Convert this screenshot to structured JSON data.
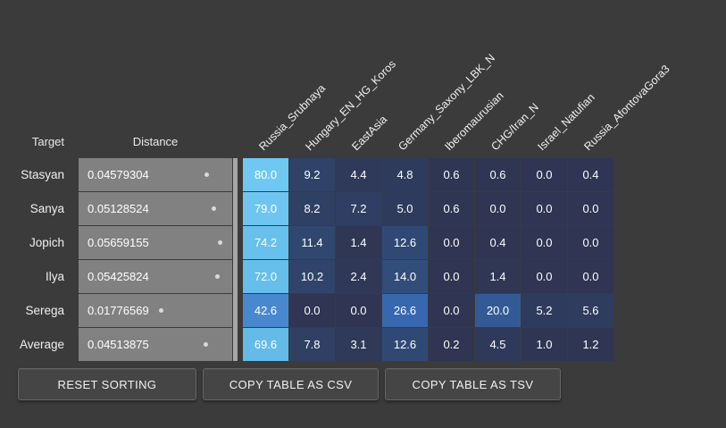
{
  "table": {
    "target_header": "Target",
    "distance_header": "Distance",
    "columns": [
      "Russia_Srubnaya",
      "Hungary_EN_HG_Koros",
      "EastAsia",
      "Germany_Saxony_LBK_N",
      "Iberomaurusian",
      "CHG/Iran_N",
      "Israel_Natufian",
      "Russia_AfontovaGora3"
    ],
    "rows": [
      {
        "target": "Stasyan",
        "distance": "0.04579304",
        "values": [
          80.0,
          9.2,
          4.4,
          4.8,
          0.6,
          0.6,
          0.0,
          0.4
        ]
      },
      {
        "target": "Sanya",
        "distance": "0.05128524",
        "values": [
          79.0,
          8.2,
          7.2,
          5.0,
          0.6,
          0.0,
          0.0,
          0.0
        ]
      },
      {
        "target": "Jopich",
        "distance": "0.05659155",
        "values": [
          74.2,
          11.4,
          1.4,
          12.6,
          0.0,
          0.4,
          0.0,
          0.0
        ]
      },
      {
        "target": "Ilya",
        "distance": "0.05425824",
        "values": [
          72.0,
          10.2,
          2.4,
          14.0,
          0.0,
          1.4,
          0.0,
          0.0
        ]
      },
      {
        "target": "Serega",
        "distance": "0.01776569",
        "values": [
          42.6,
          0.0,
          0.0,
          26.6,
          0.0,
          20.0,
          5.2,
          5.6
        ]
      },
      {
        "target": "Average",
        "distance": "0.04513875",
        "values": [
          69.6,
          7.8,
          3.1,
          12.6,
          0.2,
          4.5,
          1.0,
          1.2
        ]
      }
    ]
  },
  "buttons": {
    "reset_label": "RESET SORTING",
    "csv_label": "COPY TABLE AS CSV",
    "tsv_label": "COPY TABLE AS TSV"
  },
  "colors": {
    "background": "#3b3b3b",
    "distance_cell": "#818181",
    "heat_min": "#2f3552",
    "heat_max": "#6fc7f0"
  }
}
